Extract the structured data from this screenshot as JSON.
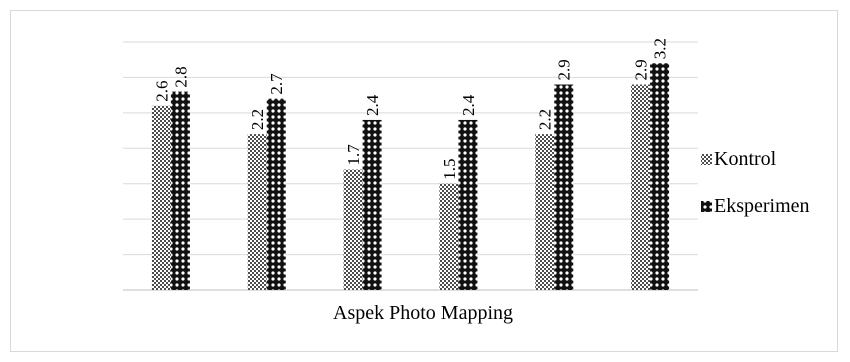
{
  "chart_data": {
    "type": "bar",
    "title": "",
    "xlabel": "Aspek Photo Mapping",
    "ylabel": "",
    "ylim": [
      0,
      3.5
    ],
    "grid": true,
    "legend_position": "right",
    "categories": [
      "",
      "",
      "",
      "",
      "",
      ""
    ],
    "series": [
      {
        "name": "Kontrol",
        "values": [
          2.6,
          2.2,
          1.7,
          1.5,
          2.2,
          2.9
        ],
        "pattern": "crosshatch"
      },
      {
        "name": "Eksperimen",
        "values": [
          2.8,
          2.7,
          2.4,
          2.4,
          2.9,
          3.2
        ],
        "pattern": "dense-dots"
      }
    ]
  }
}
